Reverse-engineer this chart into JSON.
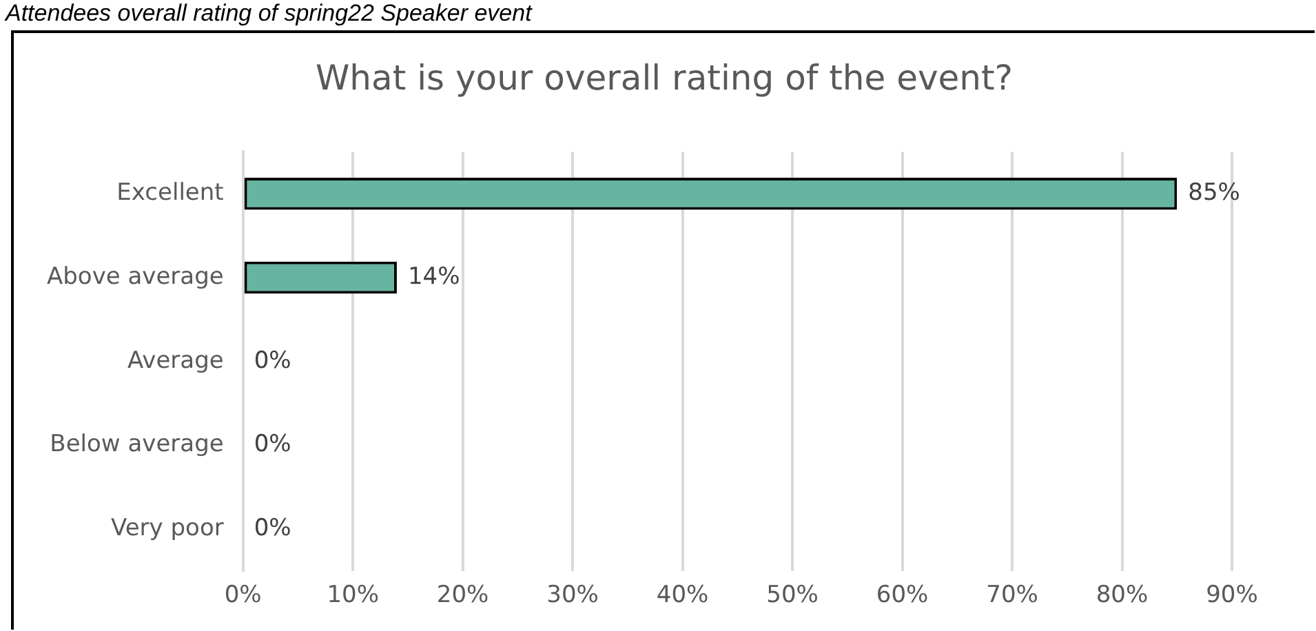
{
  "chart_data": {
    "type": "bar",
    "orientation": "horizontal",
    "title": "What is your overall rating of the event?",
    "annotations": [
      "Attendees overall rating of spring22 Speaker event"
    ],
    "categories": [
      "Excellent",
      "Above average",
      "Average",
      "Below average",
      "Very poor"
    ],
    "values": [
      85,
      14,
      0,
      0,
      0
    ],
    "color": "#65b5a0",
    "value_labels": [
      "85%",
      "14%",
      "0%",
      "0%",
      "0%"
    ],
    "xlim": [
      0,
      90
    ],
    "xticks": [
      {
        "value": 0,
        "label": "0%"
      },
      {
        "value": 10,
        "label": "10%"
      },
      {
        "value": 20,
        "label": "20%"
      },
      {
        "value": 30,
        "label": "30%"
      },
      {
        "value": 40,
        "label": "40%"
      },
      {
        "value": 50,
        "label": "50%"
      },
      {
        "value": 60,
        "label": "60%"
      },
      {
        "value": 70,
        "label": "70%"
      },
      {
        "value": 80,
        "label": "80%"
      },
      {
        "value": 90,
        "label": "90%"
      }
    ],
    "grid": "x",
    "legend": false
  }
}
